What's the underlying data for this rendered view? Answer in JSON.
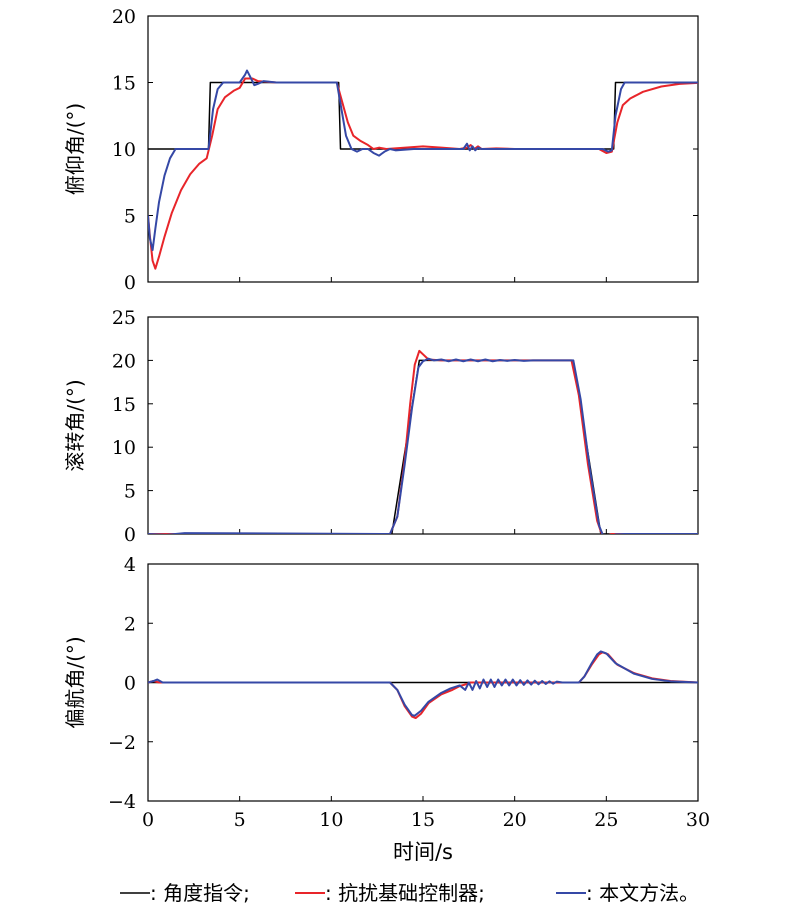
{
  "chart_data": [
    {
      "type": "line",
      "ylabel": "俯仰角/(°)",
      "xlim": [
        0,
        30
      ],
      "ylim": [
        0,
        20
      ],
      "yticks": [
        0,
        5,
        10,
        15,
        20
      ],
      "series": [
        {
          "name": "角度指令",
          "color": "#000000",
          "points": [
            [
              0,
              10
            ],
            [
              3.3,
              10
            ],
            [
              3.4,
              15
            ],
            [
              10.4,
              15
            ],
            [
              10.5,
              10
            ],
            [
              25.4,
              10
            ],
            [
              25.5,
              15
            ],
            [
              30,
              15
            ]
          ]
        },
        {
          "name": "抗扰基础控制器",
          "color": "#e8252a",
          "points": [
            [
              0,
              5
            ],
            [
              0.1,
              3.5
            ],
            [
              0.25,
              1.6
            ],
            [
              0.4,
              1.0
            ],
            [
              0.6,
              1.9
            ],
            [
              0.9,
              3.4
            ],
            [
              1.3,
              5.2
            ],
            [
              1.8,
              6.9
            ],
            [
              2.3,
              8.1
            ],
            [
              2.8,
              8.9
            ],
            [
              3.2,
              9.3
            ],
            [
              3.5,
              11.0
            ],
            [
              3.8,
              13.0
            ],
            [
              4.2,
              13.9
            ],
            [
              4.7,
              14.4
            ],
            [
              5.0,
              14.6
            ],
            [
              5.3,
              15.3
            ],
            [
              5.7,
              15.3
            ],
            [
              6.0,
              15.1
            ],
            [
              7,
              15
            ],
            [
              10.3,
              15
            ],
            [
              10.6,
              13.5
            ],
            [
              10.9,
              12.0
            ],
            [
              11.2,
              11.0
            ],
            [
              11.6,
              10.6
            ],
            [
              12.0,
              10.3
            ],
            [
              12.3,
              10.0
            ],
            [
              12.6,
              10.1
            ],
            [
              13,
              10
            ],
            [
              15.0,
              10.2
            ],
            [
              16.0,
              10.1
            ],
            [
              17.0,
              10.0
            ],
            [
              17.4,
              10.1
            ],
            [
              17.6,
              10.3
            ],
            [
              17.8,
              10.0
            ],
            [
              18.0,
              10.2
            ],
            [
              18.2,
              10.0
            ],
            [
              19,
              10.05
            ],
            [
              20,
              10
            ],
            [
              24.6,
              10
            ],
            [
              25.0,
              9.7
            ],
            [
              25.3,
              9.8
            ],
            [
              25.6,
              12.0
            ],
            [
              25.9,
              13.3
            ],
            [
              26.3,
              13.8
            ],
            [
              27.0,
              14.3
            ],
            [
              28.0,
              14.7
            ],
            [
              29.0,
              14.9
            ],
            [
              30,
              14.97
            ]
          ]
        },
        {
          "name": "本文方法",
          "color": "#3548a6",
          "points": [
            [
              0,
              5
            ],
            [
              0.1,
              3.3
            ],
            [
              0.25,
              2.4
            ],
            [
              0.4,
              4.0
            ],
            [
              0.6,
              6.0
            ],
            [
              0.9,
              8.0
            ],
            [
              1.2,
              9.3
            ],
            [
              1.5,
              10.0
            ],
            [
              1.8,
              10.0
            ],
            [
              3.3,
              10.0
            ],
            [
              3.55,
              13.0
            ],
            [
              3.8,
              14.5
            ],
            [
              4.1,
              15.0
            ],
            [
              5.0,
              15.0
            ],
            [
              5.3,
              15.6
            ],
            [
              5.4,
              15.9
            ],
            [
              5.55,
              15.5
            ],
            [
              5.8,
              14.8
            ],
            [
              6.0,
              14.9
            ],
            [
              6.3,
              15.1
            ],
            [
              7,
              15
            ],
            [
              10.3,
              15
            ],
            [
              10.55,
              13.0
            ],
            [
              10.8,
              11.0
            ],
            [
              11.1,
              10.0
            ],
            [
              11.4,
              9.8
            ],
            [
              11.7,
              10.0
            ],
            [
              12.0,
              10.0
            ],
            [
              12.3,
              9.7
            ],
            [
              12.6,
              9.5
            ],
            [
              12.9,
              9.8
            ],
            [
              13.2,
              10.0
            ],
            [
              13.5,
              9.9
            ],
            [
              14.5,
              10.0
            ],
            [
              17.2,
              10.0
            ],
            [
              17.4,
              10.4
            ],
            [
              17.55,
              9.9
            ],
            [
              17.7,
              10.2
            ],
            [
              17.85,
              9.9
            ],
            [
              18.0,
              10.1
            ],
            [
              18.2,
              10.0
            ],
            [
              24.8,
              10.0
            ],
            [
              25.1,
              9.8
            ],
            [
              25.3,
              9.9
            ],
            [
              25.5,
              12.5
            ],
            [
              25.8,
              14.5
            ],
            [
              26.0,
              15.0
            ],
            [
              26.6,
              15.0
            ],
            [
              30,
              15
            ]
          ]
        }
      ]
    },
    {
      "type": "line",
      "ylabel": "滚转角/(°)",
      "xlim": [
        0,
        30
      ],
      "ylim": [
        0,
        25
      ],
      "yticks": [
        0,
        5,
        10,
        15,
        20,
        25
      ],
      "series": [
        {
          "name": "角度指令",
          "color": "#000000",
          "points": [
            [
              0,
              0
            ],
            [
              13.3,
              0
            ],
            [
              14.8,
              20
            ],
            [
              23.2,
              20
            ],
            [
              24.7,
              0
            ],
            [
              30,
              0
            ]
          ]
        },
        {
          "name": "抗扰基础控制器",
          "color": "#e8252a",
          "points": [
            [
              0,
              0
            ],
            [
              1,
              0
            ],
            [
              13.2,
              0
            ],
            [
              13.6,
              2.0
            ],
            [
              14.0,
              8.5
            ],
            [
              14.3,
              15.0
            ],
            [
              14.55,
              19.5
            ],
            [
              14.8,
              21.1
            ],
            [
              15.0,
              20.7
            ],
            [
              15.3,
              20.1
            ],
            [
              16,
              20
            ],
            [
              23.1,
              20
            ],
            [
              23.5,
              16.0
            ],
            [
              24.0,
              8.0
            ],
            [
              24.5,
              1.5
            ],
            [
              24.8,
              -0.3
            ],
            [
              25.0,
              -0.2
            ],
            [
              25.3,
              0
            ],
            [
              30,
              0
            ]
          ]
        },
        {
          "name": "本文方法",
          "color": "#3548a6",
          "points": [
            [
              0,
              0
            ],
            [
              1.0,
              -0.1
            ],
            [
              2.0,
              0.1
            ],
            [
              13.2,
              0
            ],
            [
              13.6,
              2.0
            ],
            [
              14.0,
              8.0
            ],
            [
              14.4,
              14.5
            ],
            [
              14.75,
              19.2
            ],
            [
              15.0,
              19.9
            ],
            [
              15.3,
              20.2
            ],
            [
              15.6,
              20.0
            ],
            [
              16.0,
              20.1
            ],
            [
              16.4,
              19.9
            ],
            [
              16.8,
              20.1
            ],
            [
              17.2,
              19.9
            ],
            [
              17.6,
              20.1
            ],
            [
              18.0,
              19.9
            ],
            [
              18.4,
              20.1
            ],
            [
              18.8,
              19.9
            ],
            [
              19.2,
              20.05
            ],
            [
              19.6,
              19.95
            ],
            [
              20.0,
              20.05
            ],
            [
              20.5,
              19.95
            ],
            [
              21,
              20
            ],
            [
              23.2,
              20
            ],
            [
              23.6,
              15.5
            ],
            [
              24.1,
              7.5
            ],
            [
              24.6,
              1.0
            ],
            [
              24.9,
              -0.6
            ],
            [
              25.2,
              -0.4
            ],
            [
              25.5,
              -0.05
            ],
            [
              26,
              0
            ],
            [
              30,
              0
            ]
          ]
        }
      ]
    },
    {
      "type": "line",
      "ylabel": "偏航角/(°)",
      "xlabel": "时间/s",
      "xlim": [
        0,
        30
      ],
      "ylim": [
        -4,
        4
      ],
      "yticks": [
        -4,
        -2,
        0,
        2,
        4
      ],
      "xticks": [
        0,
        5,
        10,
        15,
        20,
        25,
        30
      ],
      "series": [
        {
          "name": "角度指令",
          "color": "#000000",
          "points": [
            [
              0,
              0
            ],
            [
              30,
              0
            ]
          ]
        },
        {
          "name": "抗扰基础控制器",
          "color": "#e8252a",
          "points": [
            [
              0,
              0
            ],
            [
              0.3,
              0.05
            ],
            [
              0.6,
              0.0
            ],
            [
              13.2,
              0
            ],
            [
              13.6,
              -0.25
            ],
            [
              14.0,
              -0.8
            ],
            [
              14.4,
              -1.15
            ],
            [
              14.6,
              -1.2
            ],
            [
              14.9,
              -1.05
            ],
            [
              15.3,
              -0.7
            ],
            [
              16.0,
              -0.4
            ],
            [
              16.6,
              -0.25
            ],
            [
              17.0,
              -0.12
            ],
            [
              17.4,
              -0.05
            ],
            [
              17.6,
              0.0
            ],
            [
              23.5,
              0.0
            ],
            [
              23.8,
              0.2
            ],
            [
              24.2,
              0.6
            ],
            [
              24.6,
              0.95
            ],
            [
              24.8,
              1.02
            ],
            [
              25.1,
              0.95
            ],
            [
              25.6,
              0.6
            ],
            [
              26.5,
              0.32
            ],
            [
              27.5,
              0.14
            ],
            [
              28.5,
              0.05
            ],
            [
              30,
              0.0
            ]
          ]
        },
        {
          "name": "本文方法",
          "color": "#3548a6",
          "points": [
            [
              0,
              0
            ],
            [
              0.3,
              0.05
            ],
            [
              0.5,
              0.1
            ],
            [
              0.8,
              0.0
            ],
            [
              13.2,
              0
            ],
            [
              13.6,
              -0.25
            ],
            [
              14.0,
              -0.75
            ],
            [
              14.4,
              -1.1
            ],
            [
              14.55,
              -1.12
            ],
            [
              14.9,
              -0.95
            ],
            [
              15.3,
              -0.65
            ],
            [
              16.0,
              -0.35
            ],
            [
              16.5,
              -0.2
            ],
            [
              17.0,
              -0.1
            ],
            [
              17.3,
              -0.25
            ],
            [
              17.5,
              0.0
            ],
            [
              17.7,
              -0.25
            ],
            [
              17.9,
              0.05
            ],
            [
              18.1,
              -0.2
            ],
            [
              18.3,
              0.1
            ],
            [
              18.5,
              -0.15
            ],
            [
              18.7,
              0.1
            ],
            [
              18.9,
              -0.15
            ],
            [
              19.1,
              0.1
            ],
            [
              19.3,
              -0.1
            ],
            [
              19.5,
              0.1
            ],
            [
              19.7,
              -0.1
            ],
            [
              19.9,
              0.1
            ],
            [
              20.1,
              -0.1
            ],
            [
              20.3,
              0.08
            ],
            [
              20.5,
              -0.08
            ],
            [
              20.7,
              0.07
            ],
            [
              20.9,
              -0.07
            ],
            [
              21.1,
              0.06
            ],
            [
              21.3,
              -0.06
            ],
            [
              21.5,
              0.05
            ],
            [
              21.7,
              -0.05
            ],
            [
              21.9,
              0.04
            ],
            [
              22.1,
              -0.04
            ],
            [
              22.3,
              0.03
            ],
            [
              22.6,
              0.0
            ],
            [
              23.5,
              0.0
            ],
            [
              23.8,
              0.2
            ],
            [
              24.2,
              0.65
            ],
            [
              24.5,
              0.95
            ],
            [
              24.7,
              1.05
            ],
            [
              25.0,
              0.98
            ],
            [
              25.5,
              0.65
            ],
            [
              26.5,
              0.3
            ],
            [
              27.5,
              0.12
            ],
            [
              28.5,
              0.04
            ],
            [
              30,
              0.0
            ]
          ]
        }
      ]
    }
  ],
  "legend": {
    "items": [
      {
        "marker": "——",
        "text": ": 角度指令;",
        "color": "#000000"
      },
      {
        "marker": "——",
        "text": ": 抗扰基础控制器;",
        "color": "#e8252a"
      },
      {
        "marker": "——",
        "text": ": 本文方法。",
        "color": "#3548a6"
      }
    ]
  }
}
